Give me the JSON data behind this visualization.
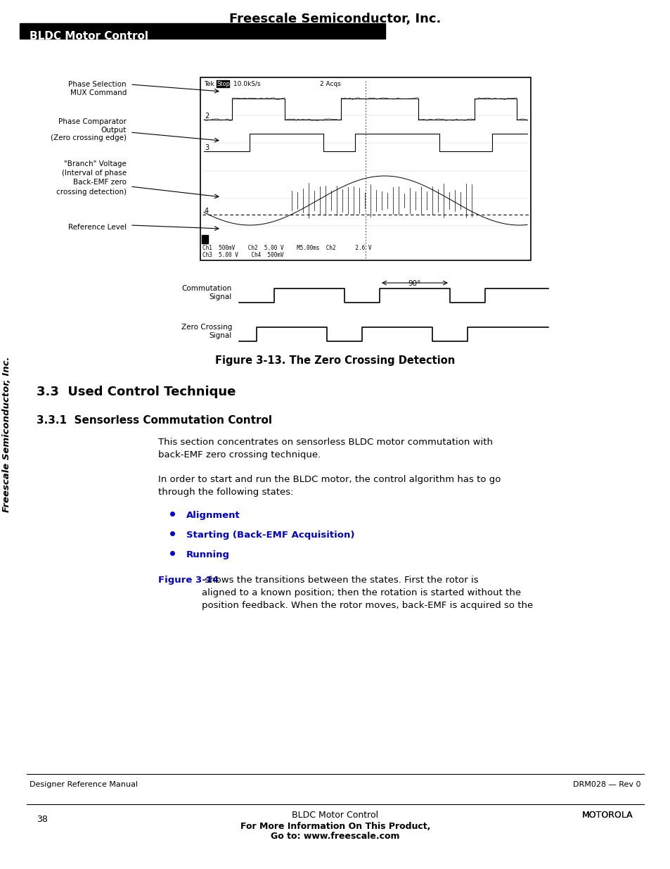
{
  "page_title": "Freescale Semiconductor, Inc.",
  "header_bar_text": "BLDC Motor Control",
  "header_bar_color": "#000000",
  "header_text_color": "#ffffff",
  "figure_caption": "Figure 3-13. The Zero Crossing Detection",
  "section_title": "3.3  Used Control Technique",
  "subsection_title": "3.3.1  Sensorless Commutation Control",
  "body_text_1": "This section concentrates on sensorless BLDC motor commutation with\nback-EMF zero crossing technique.",
  "body_text_2": "In order to start and run the BLDC motor, the control algorithm has to go\nthrough the following states:",
  "bullet_1": "Alignment",
  "bullet_2": "Starting (Back-EMF Acquisition)",
  "bullet_3": "Running",
  "body_text_3": "Figure 3-14 shows the transitions between the states. First the rotor is\naligned to a known position; then the rotation is started without the\nposition feedback. When the rotor moves, back-EMF is acquired so the",
  "footer_left": "Designer Reference Manual",
  "footer_right": "DRM028 — Rev 0",
  "footer_page": "38",
  "footer_center": "BLDC Motor Control",
  "footer_promo_1": "For More Information On This Product,",
  "footer_promo_2": "Go to: www.freescale.com",
  "side_text": "Freescale Semiconductor, Inc.",
  "osc_labels": {
    "phase_sel": "Phase Selection\nMUX Command",
    "phase_comp": "Phase Comparator\nOutput\n(Zero crossing edge)",
    "branch_v": "\"Branch\" Voltage\n(Interval of phase\nBack-EMF zero\ncrossing detection)",
    "ref_level": "Reference Level",
    "comm_signal": "Commutation\nSignal",
    "zero_crossing": "Zero Crossing\nSignal",
    "tek_label": "Tek  Stop  10.0kS/s        2 Acqs",
    "ch_info": "Ch1  500mV    Ch2   5.00 V   M5.00ms  Ch2       2.6 V\nCh3  5.00 V   Ch4  500mV",
    "angle_label": "90°"
  },
  "bullet_color": "#0000cc",
  "figure_ref_color": "#0000cc",
  "background_color": "#ffffff"
}
